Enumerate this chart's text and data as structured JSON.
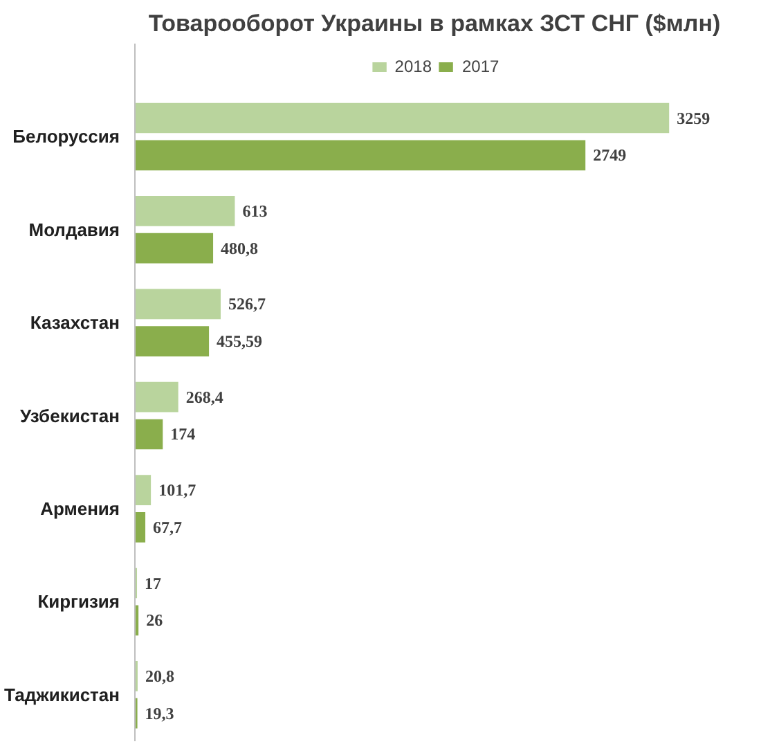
{
  "chart_data": {
    "type": "bar",
    "orientation": "horizontal",
    "title": "Товарооборот Украины в рамках ЗСТ СНГ ($млн)",
    "categories": [
      "Белоруссия",
      "Молдавия",
      "Казахстан",
      "Узбекистан",
      "Армения",
      "Киргизия",
      "Таджикистан"
    ],
    "series": [
      {
        "name": "2018",
        "color": "#b9d49d",
        "values": [
          3259,
          613,
          526.7,
          268.4,
          101.7,
          17,
          20.8
        ],
        "value_labels": [
          "3259",
          "613",
          "526,7",
          "268,4",
          "101,7",
          "17",
          "20,8"
        ]
      },
      {
        "name": "2017",
        "color": "#8aae4c",
        "values": [
          2749,
          480.8,
          455.59,
          174,
          67.7,
          26,
          19.3
        ],
        "value_labels": [
          "2749",
          "480,8",
          "455,59",
          "174",
          "67,7",
          "26",
          "19,3"
        ]
      }
    ],
    "legend": "top"
  }
}
